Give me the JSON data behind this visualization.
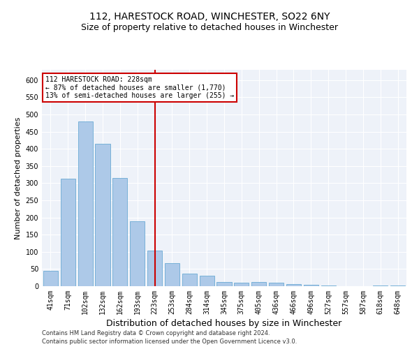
{
  "title1": "112, HARESTOCK ROAD, WINCHESTER, SO22 6NY",
  "title2": "Size of property relative to detached houses in Winchester",
  "xlabel": "Distribution of detached houses by size in Winchester",
  "ylabel": "Number of detached properties",
  "categories": [
    "41sqm",
    "71sqm",
    "102sqm",
    "132sqm",
    "162sqm",
    "193sqm",
    "223sqm",
    "253sqm",
    "284sqm",
    "314sqm",
    "345sqm",
    "375sqm",
    "405sqm",
    "436sqm",
    "466sqm",
    "496sqm",
    "527sqm",
    "557sqm",
    "587sqm",
    "618sqm",
    "648sqm"
  ],
  "values": [
    45,
    312,
    480,
    415,
    315,
    190,
    103,
    68,
    37,
    30,
    13,
    10,
    13,
    10,
    7,
    5,
    2,
    0,
    0,
    3,
    2
  ],
  "bar_color": "#adc9e8",
  "bar_edge_color": "#6aaad4",
  "vline_x_index": 6,
  "vline_color": "#cc0000",
  "annotation_text": "112 HARESTOCK ROAD: 228sqm\n← 87% of detached houses are smaller (1,770)\n13% of semi-detached houses are larger (255) →",
  "annotation_box_color": "#ffffff",
  "annotation_box_edge": "#cc0000",
  "ylim": [
    0,
    630
  ],
  "yticks": [
    0,
    50,
    100,
    150,
    200,
    250,
    300,
    350,
    400,
    450,
    500,
    550,
    600
  ],
  "footnote1": "Contains HM Land Registry data © Crown copyright and database right 2024.",
  "footnote2": "Contains public sector information licensed under the Open Government Licence v3.0.",
  "bg_color": "#eef2f9",
  "title1_fontsize": 10,
  "title2_fontsize": 9,
  "ylabel_fontsize": 8,
  "xlabel_fontsize": 9,
  "tick_fontsize": 7,
  "annot_fontsize": 7,
  "footnote_fontsize": 6
}
